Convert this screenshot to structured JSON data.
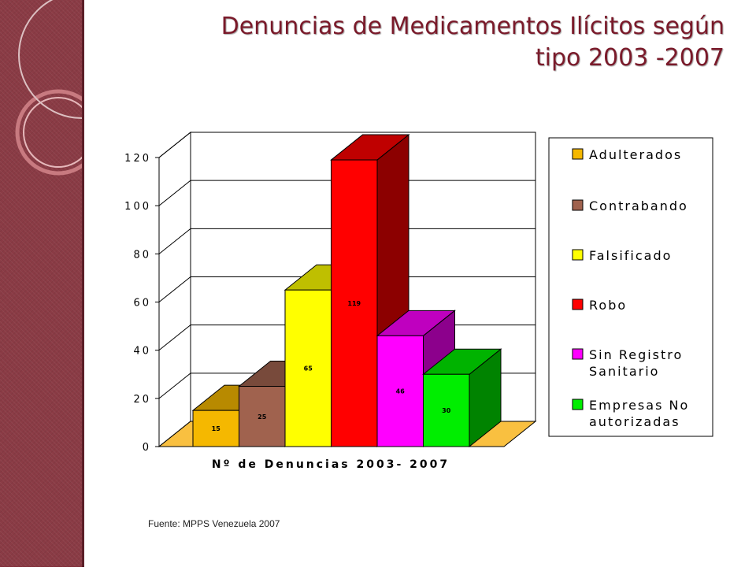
{
  "slide": {
    "title_line1": "Denuncias de Medicamentos Ilícitos según",
    "title_line2": "tipo 2003 -2007",
    "source": "Fuente: MPPS Venezuela 2007"
  },
  "chart_data": {
    "type": "bar",
    "three_d": true,
    "title": "",
    "xlabel": "Nº de Denuncias 2003- 2007",
    "ylabel": "",
    "ylim": [
      0,
      120
    ],
    "yticks": [
      0,
      20,
      40,
      60,
      80,
      100,
      120
    ],
    "grid": true,
    "legend_position": "right",
    "series": [
      {
        "name": "Adulterados",
        "values": [
          15
        ],
        "color": "#f5b800",
        "label": "15"
      },
      {
        "name": "Contrabando",
        "values": [
          25
        ],
        "color": "#a0624e",
        "label": "25"
      },
      {
        "name": "Falsificado",
        "values": [
          65
        ],
        "color": "#ffff00",
        "label": "65"
      },
      {
        "name": "Robo",
        "values": [
          119
        ],
        "color": "#ff0000",
        "label": "119"
      },
      {
        "name": "Sin Registro Sanitario",
        "legend_lines": [
          "Sin Registro",
          "Sanitario"
        ],
        "values": [
          46
        ],
        "color": "#ff00ff",
        "label": "46"
      },
      {
        "name": "Empresas No autorizadas",
        "legend_lines": [
          "Empresas No",
          "autorizadas"
        ],
        "values": [
          30
        ],
        "color": "#00ee00",
        "label": "30"
      }
    ]
  }
}
